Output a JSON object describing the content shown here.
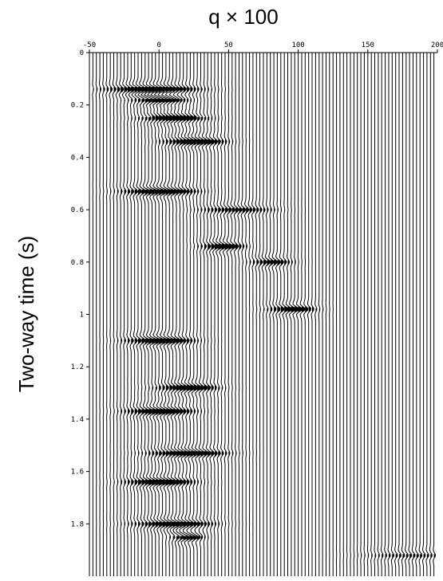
{
  "chart_data": {
    "type": "seismic_wiggle",
    "title": "q × 100",
    "xlabel": "",
    "ylabel": "Two-way time (s)",
    "xlim": [
      -50,
      200
    ],
    "ylim": [
      0,
      2.0
    ],
    "xticks": [
      -50,
      0,
      50,
      100,
      150,
      200
    ],
    "xtick_labels": [
      "-50",
      "0",
      "50",
      "100",
      "150",
      "200"
    ],
    "yticks": [
      0,
      0.2,
      0.4,
      0.6,
      0.8,
      1.0,
      1.2,
      1.4,
      1.6,
      1.8
    ],
    "ytick_labels": [
      "0",
      "0.2",
      "0.4",
      "0.6",
      "0.8",
      "1",
      "1.2",
      "1.4",
      "1.6",
      "1.8"
    ],
    "trace_spacing_q": 2.5,
    "events": [
      {
        "t": 0.14,
        "q": -5,
        "amp": 1.0,
        "width": 30
      },
      {
        "t": 0.18,
        "q": 0,
        "amp": 1.0,
        "width": 18
      },
      {
        "t": 0.25,
        "q": 10,
        "amp": 0.9,
        "width": 22
      },
      {
        "t": 0.34,
        "q": 25,
        "amp": 1.0,
        "width": 20
      },
      {
        "t": 0.53,
        "q": 0,
        "amp": 1.0,
        "width": 24
      },
      {
        "t": 0.6,
        "q": 55,
        "amp": 0.6,
        "width": 25
      },
      {
        "t": 0.74,
        "q": 45,
        "amp": 0.9,
        "width": 14
      },
      {
        "t": 0.8,
        "q": 80,
        "amp": 0.7,
        "width": 14
      },
      {
        "t": 0.98,
        "q": 95,
        "amp": 0.8,
        "width": 16
      },
      {
        "t": 1.1,
        "q": 0,
        "amp": 1.0,
        "width": 22
      },
      {
        "t": 1.28,
        "q": 20,
        "amp": 0.9,
        "width": 20
      },
      {
        "t": 1.37,
        "q": 0,
        "amp": 1.0,
        "width": 22
      },
      {
        "t": 1.53,
        "q": 20,
        "amp": 0.9,
        "width": 26
      },
      {
        "t": 1.64,
        "q": 0,
        "amp": 1.0,
        "width": 22
      },
      {
        "t": 1.8,
        "q": 10,
        "amp": 0.9,
        "width": 26
      },
      {
        "t": 1.85,
        "q": 20,
        "amp": 1.0,
        "width": 10
      },
      {
        "t": 1.92,
        "q": 180,
        "amp": 0.4,
        "width": 30
      }
    ],
    "grid": false,
    "legend": "none"
  }
}
